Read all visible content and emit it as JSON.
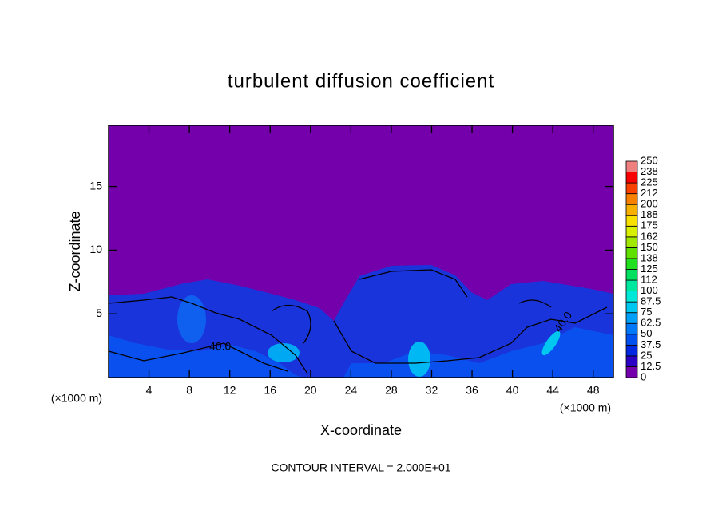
{
  "chart_data": {
    "type": "contour",
    "title": "turbulent diffusion coefficient",
    "x_label": "X-coordinate",
    "y_label": "Z-coordinate",
    "x_unit": "(×1000 m)",
    "y_unit": "(×1000 m)",
    "footer": "CONTOUR INTERVAL = 2.000E+01",
    "contour_labels": [
      "40.0",
      "40.0"
    ],
    "xlim": [
      0,
      50
    ],
    "xticks": [
      4,
      8,
      12,
      16,
      20,
      24,
      28,
      32,
      36,
      40,
      44,
      48
    ],
    "ylim": [
      0,
      19.8
    ],
    "yticks": [
      5,
      10,
      15
    ],
    "colorbar": {
      "levels": [
        0,
        12.5,
        25,
        37.5,
        50,
        62.5,
        75,
        87.5,
        100,
        112,
        125,
        138,
        150,
        162,
        175,
        188,
        200,
        212,
        225,
        238,
        250
      ],
      "colors": [
        "#7400ac",
        "#2a00c4",
        "#0028e0",
        "#0050f0",
        "#0078f8",
        "#00a0f8",
        "#00c8f0",
        "#00e8d8",
        "#00e8a0",
        "#00e060",
        "#20e020",
        "#60e000",
        "#a0e800",
        "#d8f000",
        "#f8e000",
        "#f8b000",
        "#f88000",
        "#f84000",
        "#f80000",
        "#f08080"
      ]
    }
  }
}
